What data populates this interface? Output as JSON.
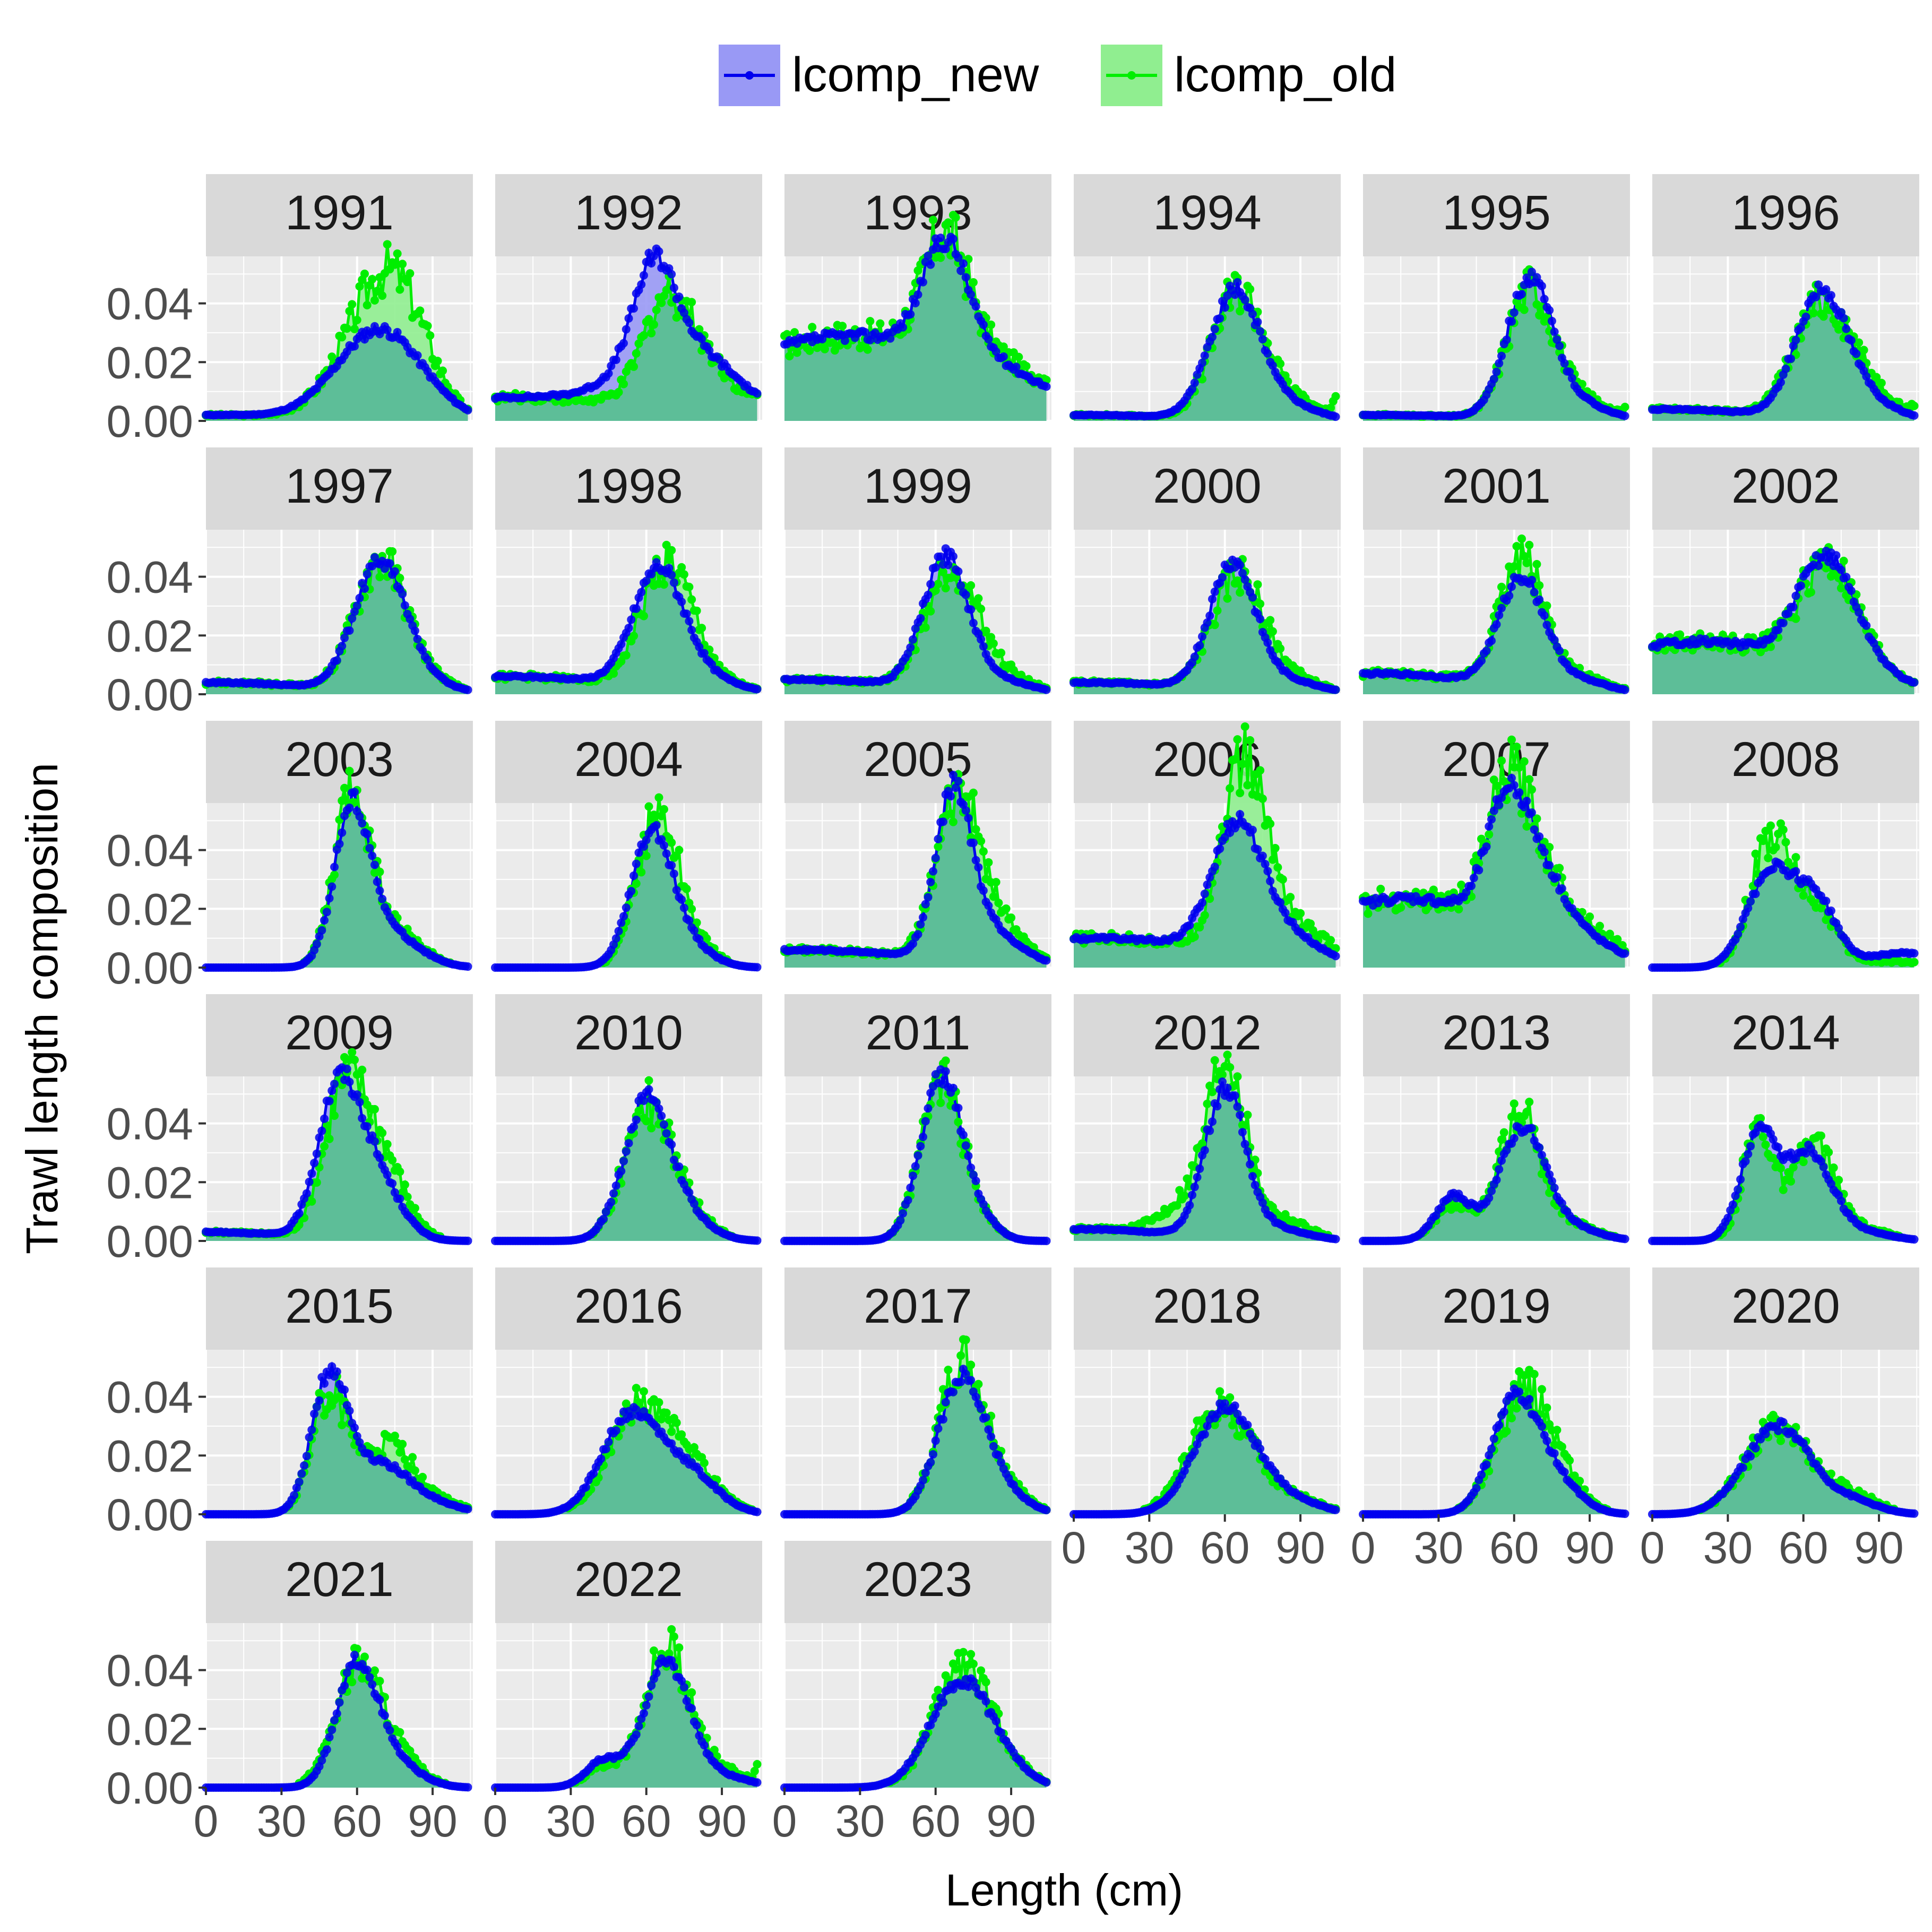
{
  "chart_data": {
    "type": "line",
    "title": "",
    "xlabel": "Length (cm)",
    "ylabel": "Trawl length composition",
    "xlim": [
      0,
      106
    ],
    "ylim": [
      0,
      0.056
    ],
    "x_ticks": [
      0,
      30,
      60,
      90
    ],
    "x_tick_labels": [
      "0",
      "30",
      "60",
      "90"
    ],
    "y_ticks": [
      0,
      0.02,
      0.04
    ],
    "y_tick_labels": [
      "0.00",
      "0.02",
      "0.04"
    ],
    "grid": true,
    "legend_position": "top",
    "length_bins": {
      "start": 0,
      "end": 104,
      "step": 1
    },
    "series": [
      {
        "name": "lcomp_new",
        "color": "#0000ee",
        "fill": "#9999f5"
      },
      {
        "name": "lcomp_old",
        "color": "#00ee00",
        "fill": "#90ee90"
      }
    ],
    "overlap_fill": "#5dbe98",
    "panels": [
      {
        "year": "1991",
        "new": [
          [
            3,
            0.002,
            30
          ],
          [
            69,
            0.031,
            17
          ]
        ],
        "old": [
          [
            3,
            0.002,
            30
          ],
          [
            67,
            0.034,
            15
          ],
          [
            78,
            0.022,
            12
          ]
        ]
      },
      {
        "year": "1992",
        "new": [
          [
            9,
            0.008,
            48
          ],
          [
            63,
            0.031,
            8
          ],
          [
            74,
            0.024,
            20
          ]
        ],
        "old": [
          [
            9,
            0.008,
            48
          ],
          [
            67,
            0.026,
            9
          ],
          [
            80,
            0.02,
            14
          ],
          [
            106,
            0.004,
            3
          ]
        ]
      },
      {
        "year": "1993",
        "new": [
          [
            27,
            0.029,
            53
          ],
          [
            64,
            0.038,
            9
          ],
          [
            85,
            0.004,
            14
          ]
        ],
        "old": [
          [
            27,
            0.029,
            53
          ],
          [
            64,
            0.039,
            9
          ],
          [
            85,
            0.006,
            14
          ],
          [
            106,
            0.004,
            3
          ]
        ]
      },
      {
        "year": "1994",
        "new": [
          [
            3,
            0.002,
            38
          ],
          [
            64,
            0.043,
            10
          ],
          [
            85,
            0.005,
            12
          ]
        ],
        "old": [
          [
            3,
            0.002,
            38
          ],
          [
            65,
            0.042,
            10
          ],
          [
            85,
            0.007,
            12
          ],
          [
            105,
            0.006,
            2
          ]
        ]
      },
      {
        "year": "1995",
        "new": [
          [
            3,
            0.002,
            45
          ],
          [
            66,
            0.046,
            9
          ],
          [
            84,
            0.006,
            12
          ]
        ],
        "old": [
          [
            3,
            0.002,
            45
          ],
          [
            66,
            0.042,
            9
          ],
          [
            84,
            0.008,
            12
          ],
          [
            106,
            0.004,
            2
          ]
        ]
      },
      {
        "year": "1996",
        "new": [
          [
            4,
            0.004,
            38
          ],
          [
            67,
            0.042,
            10
          ],
          [
            85,
            0.006,
            12
          ]
        ],
        "old": [
          [
            4,
            0.004,
            38
          ],
          [
            67,
            0.037,
            11
          ],
          [
            85,
            0.009,
            12
          ],
          [
            105,
            0.003,
            2
          ]
        ]
      },
      {
        "year": "1997",
        "new": [
          [
            4,
            0.004,
            40
          ],
          [
            69,
            0.043,
            10
          ],
          [
            85,
            0.004,
            12
          ]
        ],
        "old": [
          [
            4,
            0.004,
            40
          ],
          [
            69,
            0.043,
            10
          ],
          [
            85,
            0.005,
            12
          ]
        ]
      },
      {
        "year": "1998",
        "new": [
          [
            6,
            0.006,
            45
          ],
          [
            65,
            0.04,
            10
          ],
          [
            85,
            0.004,
            12
          ]
        ],
        "old": [
          [
            6,
            0.006,
            45
          ],
          [
            68,
            0.041,
            10
          ],
          [
            85,
            0.004,
            12
          ]
        ]
      },
      {
        "year": "1999",
        "new": [
          [
            5,
            0.005,
            45
          ],
          [
            64,
            0.044,
            9
          ],
          [
            85,
            0.004,
            12
          ]
        ],
        "old": [
          [
            5,
            0.005,
            45
          ],
          [
            66,
            0.04,
            10
          ],
          [
            85,
            0.006,
            12
          ]
        ]
      },
      {
        "year": "2000",
        "new": [
          [
            4,
            0.004,
            45
          ],
          [
            63,
            0.043,
            9
          ],
          [
            85,
            0.004,
            12
          ]
        ],
        "old": [
          [
            4,
            0.004,
            45
          ],
          [
            65,
            0.038,
            10
          ],
          [
            85,
            0.005,
            12
          ]
        ]
      },
      {
        "year": "2001",
        "new": [
          [
            7,
            0.007,
            40
          ],
          [
            63,
            0.037,
            9
          ],
          [
            85,
            0.004,
            12
          ]
        ],
        "old": [
          [
            7,
            0.007,
            40
          ],
          [
            63,
            0.043,
            9
          ],
          [
            85,
            0.005,
            12
          ]
        ]
      },
      {
        "year": "2002",
        "new": [
          [
            18,
            0.018,
            43
          ],
          [
            69,
            0.037,
            11
          ],
          [
            85,
            0.004,
            12
          ]
        ],
        "old": [
          [
            18,
            0.018,
            43
          ],
          [
            69,
            0.034,
            11
          ],
          [
            85,
            0.005,
            12
          ]
        ]
      },
      {
        "year": "2003",
        "new": [
          [
            58,
            0.051,
            7
          ],
          [
            72,
            0.012,
            12
          ]
        ],
        "old": [
          [
            58,
            0.054,
            7
          ],
          [
            72,
            0.014,
            12
          ]
        ]
      },
      {
        "year": "2004",
        "new": [
          [
            62,
            0.044,
            8
          ],
          [
            75,
            0.008,
            10
          ]
        ],
        "old": [
          [
            64,
            0.048,
            8
          ],
          [
            75,
            0.01,
            10
          ]
        ]
      },
      {
        "year": "2005",
        "new": [
          [
            6,
            0.006,
            48
          ],
          [
            67,
            0.053,
            7
          ],
          [
            80,
            0.012,
            12
          ]
        ],
        "old": [
          [
            6,
            0.006,
            48
          ],
          [
            68,
            0.047,
            8
          ],
          [
            80,
            0.018,
            12
          ]
        ]
      },
      {
        "year": "2006",
        "new": [
          [
            10,
            0.01,
            50
          ],
          [
            65,
            0.043,
            10
          ],
          [
            85,
            0.008,
            12
          ]
        ],
        "old": [
          [
            10,
            0.01,
            50
          ],
          [
            65,
            0.048,
            8
          ],
          [
            74,
            0.025,
            8
          ],
          [
            90,
            0.01,
            12
          ]
        ]
      },
      {
        "year": "2007",
        "new": [
          [
            3,
            0.003,
            30
          ],
          [
            21,
            0.021,
            42
          ],
          [
            57,
            0.037,
            8
          ],
          [
            70,
            0.022,
            10
          ],
          [
            90,
            0.004,
            10
          ]
        ],
        "old": [
          [
            3,
            0.003,
            30
          ],
          [
            21,
            0.021,
            42
          ],
          [
            57,
            0.04,
            8
          ],
          [
            70,
            0.024,
            10
          ],
          [
            92,
            0.007,
            10
          ]
        ]
      },
      {
        "year": "2008",
        "new": [
          [
            47,
            0.033,
            9
          ],
          [
            65,
            0.022,
            8
          ],
          [
            100,
            0.005,
            15
          ]
        ],
        "old": [
          [
            47,
            0.044,
            8
          ],
          [
            65,
            0.02,
            8
          ],
          [
            95,
            0.002,
            15
          ]
        ]
      },
      {
        "year": "2009",
        "new": [
          [
            3,
            0.003,
            30
          ],
          [
            52,
            0.046,
            8
          ],
          [
            66,
            0.024,
            10
          ]
        ],
        "old": [
          [
            3,
            0.003,
            30
          ],
          [
            54,
            0.042,
            8
          ],
          [
            68,
            0.03,
            10
          ]
        ]
      },
      {
        "year": "2010",
        "new": [
          [
            60,
            0.046,
            9
          ],
          [
            75,
            0.008,
            10
          ]
        ],
        "old": [
          [
            60,
            0.043,
            9
          ],
          [
            75,
            0.01,
            10
          ]
        ]
      },
      {
        "year": "2011",
        "new": [
          [
            62,
            0.054,
            8
          ],
          [
            75,
            0.008,
            8
          ]
        ],
        "old": [
          [
            62,
            0.052,
            8
          ],
          [
            75,
            0.008,
            8
          ]
        ]
      },
      {
        "year": "2012",
        "new": [
          [
            4,
            0.004,
            35
          ],
          [
            60,
            0.05,
            8
          ],
          [
            80,
            0.004,
            12
          ]
        ],
        "old": [
          [
            4,
            0.004,
            35
          ],
          [
            61,
            0.053,
            7
          ],
          [
            50,
            0.015,
            12
          ],
          [
            80,
            0.008,
            12
          ]
        ]
      },
      {
        "year": "2013",
        "new": [
          [
            36,
            0.015,
            7
          ],
          [
            63,
            0.037,
            9
          ],
          [
            80,
            0.005,
            12
          ]
        ],
        "old": [
          [
            36,
            0.012,
            7
          ],
          [
            62,
            0.043,
            8
          ],
          [
            80,
            0.006,
            12
          ]
        ]
      },
      {
        "year": "2014",
        "new": [
          [
            42,
            0.035,
            7
          ],
          [
            62,
            0.03,
            9
          ],
          [
            82,
            0.003,
            12
          ]
        ],
        "old": [
          [
            42,
            0.039,
            6
          ],
          [
            64,
            0.032,
            8
          ],
          [
            82,
            0.004,
            12
          ]
        ]
      },
      {
        "year": "2015",
        "new": [
          [
            49,
            0.045,
            7
          ],
          [
            68,
            0.017,
            12
          ],
          [
            90,
            0.003,
            12
          ]
        ],
        "old": [
          [
            49,
            0.041,
            7
          ],
          [
            72,
            0.022,
            10
          ],
          [
            90,
            0.004,
            12
          ]
        ]
      },
      {
        "year": "2016",
        "new": [
          [
            53,
            0.032,
            11
          ],
          [
            75,
            0.015,
            12
          ]
        ],
        "old": [
          [
            55,
            0.032,
            11
          ],
          [
            75,
            0.018,
            12
          ]
        ]
      },
      {
        "year": "2017",
        "new": [
          [
            70,
            0.045,
            9
          ],
          [
            85,
            0.008,
            10
          ]
        ],
        "old": [
          [
            70,
            0.048,
            9
          ],
          [
            85,
            0.01,
            10
          ]
        ]
      },
      {
        "year": "2018",
        "new": [
          [
            60,
            0.036,
            12
          ],
          [
            85,
            0.005,
            12
          ]
        ],
        "old": [
          [
            58,
            0.036,
            12
          ],
          [
            85,
            0.006,
            12
          ]
        ]
      },
      {
        "year": "2019",
        "new": [
          [
            60,
            0.037,
            9
          ],
          [
            75,
            0.012,
            10
          ]
        ],
        "old": [
          [
            62,
            0.035,
            10
          ],
          [
            75,
            0.015,
            10
          ]
        ]
      },
      {
        "year": "2020",
        "new": [
          [
            50,
            0.03,
            13
          ],
          [
            80,
            0.004,
            10
          ]
        ],
        "old": [
          [
            50,
            0.03,
            13
          ],
          [
            80,
            0.006,
            10
          ]
        ]
      },
      {
        "year": "2021",
        "new": [
          [
            60,
            0.041,
            8
          ],
          [
            75,
            0.008,
            10
          ]
        ],
        "old": [
          [
            60,
            0.038,
            9
          ],
          [
            75,
            0.01,
            10
          ]
        ]
      },
      {
        "year": "2022",
        "new": [
          [
            43,
            0.009,
            7
          ],
          [
            68,
            0.042,
            9
          ],
          [
            88,
            0.004,
            12
          ]
        ],
        "old": [
          [
            43,
            0.007,
            7
          ],
          [
            68,
            0.046,
            9
          ],
          [
            88,
            0.006,
            12
          ],
          [
            106,
            0.008,
            2
          ]
        ]
      },
      {
        "year": "2023",
        "new": [
          [
            70,
            0.036,
            12
          ],
          [
            88,
            0.004,
            10
          ]
        ],
        "old": [
          [
            70,
            0.04,
            11
          ],
          [
            88,
            0.006,
            10
          ]
        ]
      }
    ]
  }
}
